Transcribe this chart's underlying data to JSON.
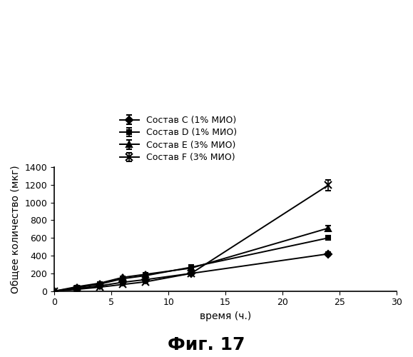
{
  "xlabel": "время (ч.)",
  "ylabel": "Общее количество (мкг)",
  "fig_label": "Фиг. 17",
  "xlim": [
    0,
    30
  ],
  "ylim": [
    0,
    1400
  ],
  "xticks": [
    0,
    5,
    10,
    15,
    20,
    25,
    30
  ],
  "yticks": [
    0,
    200,
    400,
    600,
    800,
    1000,
    1200,
    1400
  ],
  "series": [
    {
      "label": "Состав C (1% МИО)",
      "x": [
        0,
        2,
        4,
        6,
        8,
        12,
        24
      ],
      "y": [
        0,
        30,
        60,
        100,
        130,
        200,
        420
      ],
      "yerr": [
        0,
        5,
        8,
        10,
        12,
        15,
        20
      ],
      "marker": "D",
      "markersize": 5
    },
    {
      "label": "Состав D (1% МИО)",
      "x": [
        0,
        2,
        4,
        6,
        8,
        12,
        24
      ],
      "y": [
        0,
        40,
        80,
        140,
        175,
        270,
        600
      ],
      "yerr": [
        0,
        6,
        10,
        12,
        15,
        18,
        25
      ],
      "marker": "s",
      "markersize": 5
    },
    {
      "label": "Состав E (3% МИО)",
      "x": [
        0,
        2,
        4,
        6,
        8,
        12,
        24
      ],
      "y": [
        0,
        50,
        90,
        155,
        190,
        260,
        710
      ],
      "yerr": [
        0,
        6,
        10,
        13,
        15,
        20,
        30
      ],
      "marker": "^",
      "markersize": 6
    },
    {
      "label": "Состав F (3% МИО)",
      "x": [
        0,
        2,
        4,
        6,
        8,
        12,
        24
      ],
      "y": [
        0,
        20,
        45,
        75,
        105,
        200,
        1195
      ],
      "yerr": [
        0,
        4,
        6,
        8,
        10,
        15,
        60
      ],
      "marker": "x",
      "markersize": 7
    }
  ],
  "color": "#000000",
  "linewidth": 1.4,
  "background_color": "#ffffff",
  "legend_fontsize": 9,
  "axis_fontsize": 10,
  "tick_fontsize": 9,
  "fig_label_fontsize": 18
}
